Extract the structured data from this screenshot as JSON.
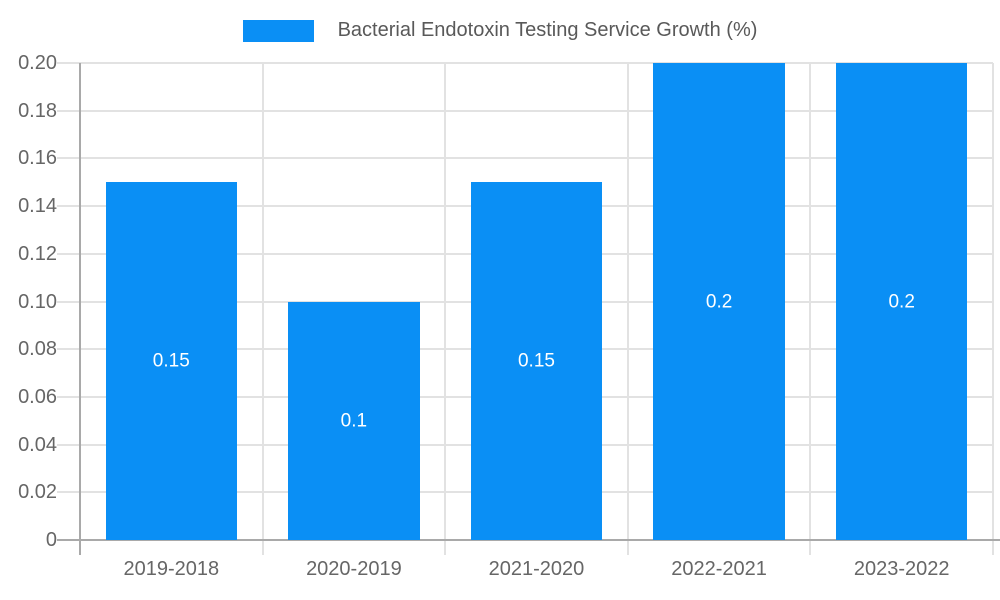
{
  "chart_data": {
    "type": "bar",
    "legend": "Bacterial Endotoxin Testing Service Growth (%)",
    "legend_position": "top-center",
    "categories": [
      "2019-2018",
      "2020-2019",
      "2021-2020",
      "2022-2021",
      "2023-2022"
    ],
    "values": [
      0.15,
      0.1,
      0.15,
      0.2,
      0.2
    ],
    "bar_labels": [
      "0.15",
      "0.1",
      "0.15",
      "0.2",
      "0.2"
    ],
    "xlabel": "",
    "ylabel": "",
    "ylim": [
      0,
      0.2
    ],
    "y_tick_labels": [
      "0",
      "0.02",
      "0.04",
      "0.06",
      "0.08",
      "0.10",
      "0.12",
      "0.14",
      "0.16",
      "0.18",
      "0.20"
    ],
    "grid": true,
    "colors": {
      "bar": "#0a8ff5",
      "grid": "#e2e2e2",
      "axis": "#a9a9a9",
      "tick_label": "#666666",
      "legend_text": "#595959",
      "bar_label": "#ffffff",
      "background": "#ffffff"
    }
  }
}
